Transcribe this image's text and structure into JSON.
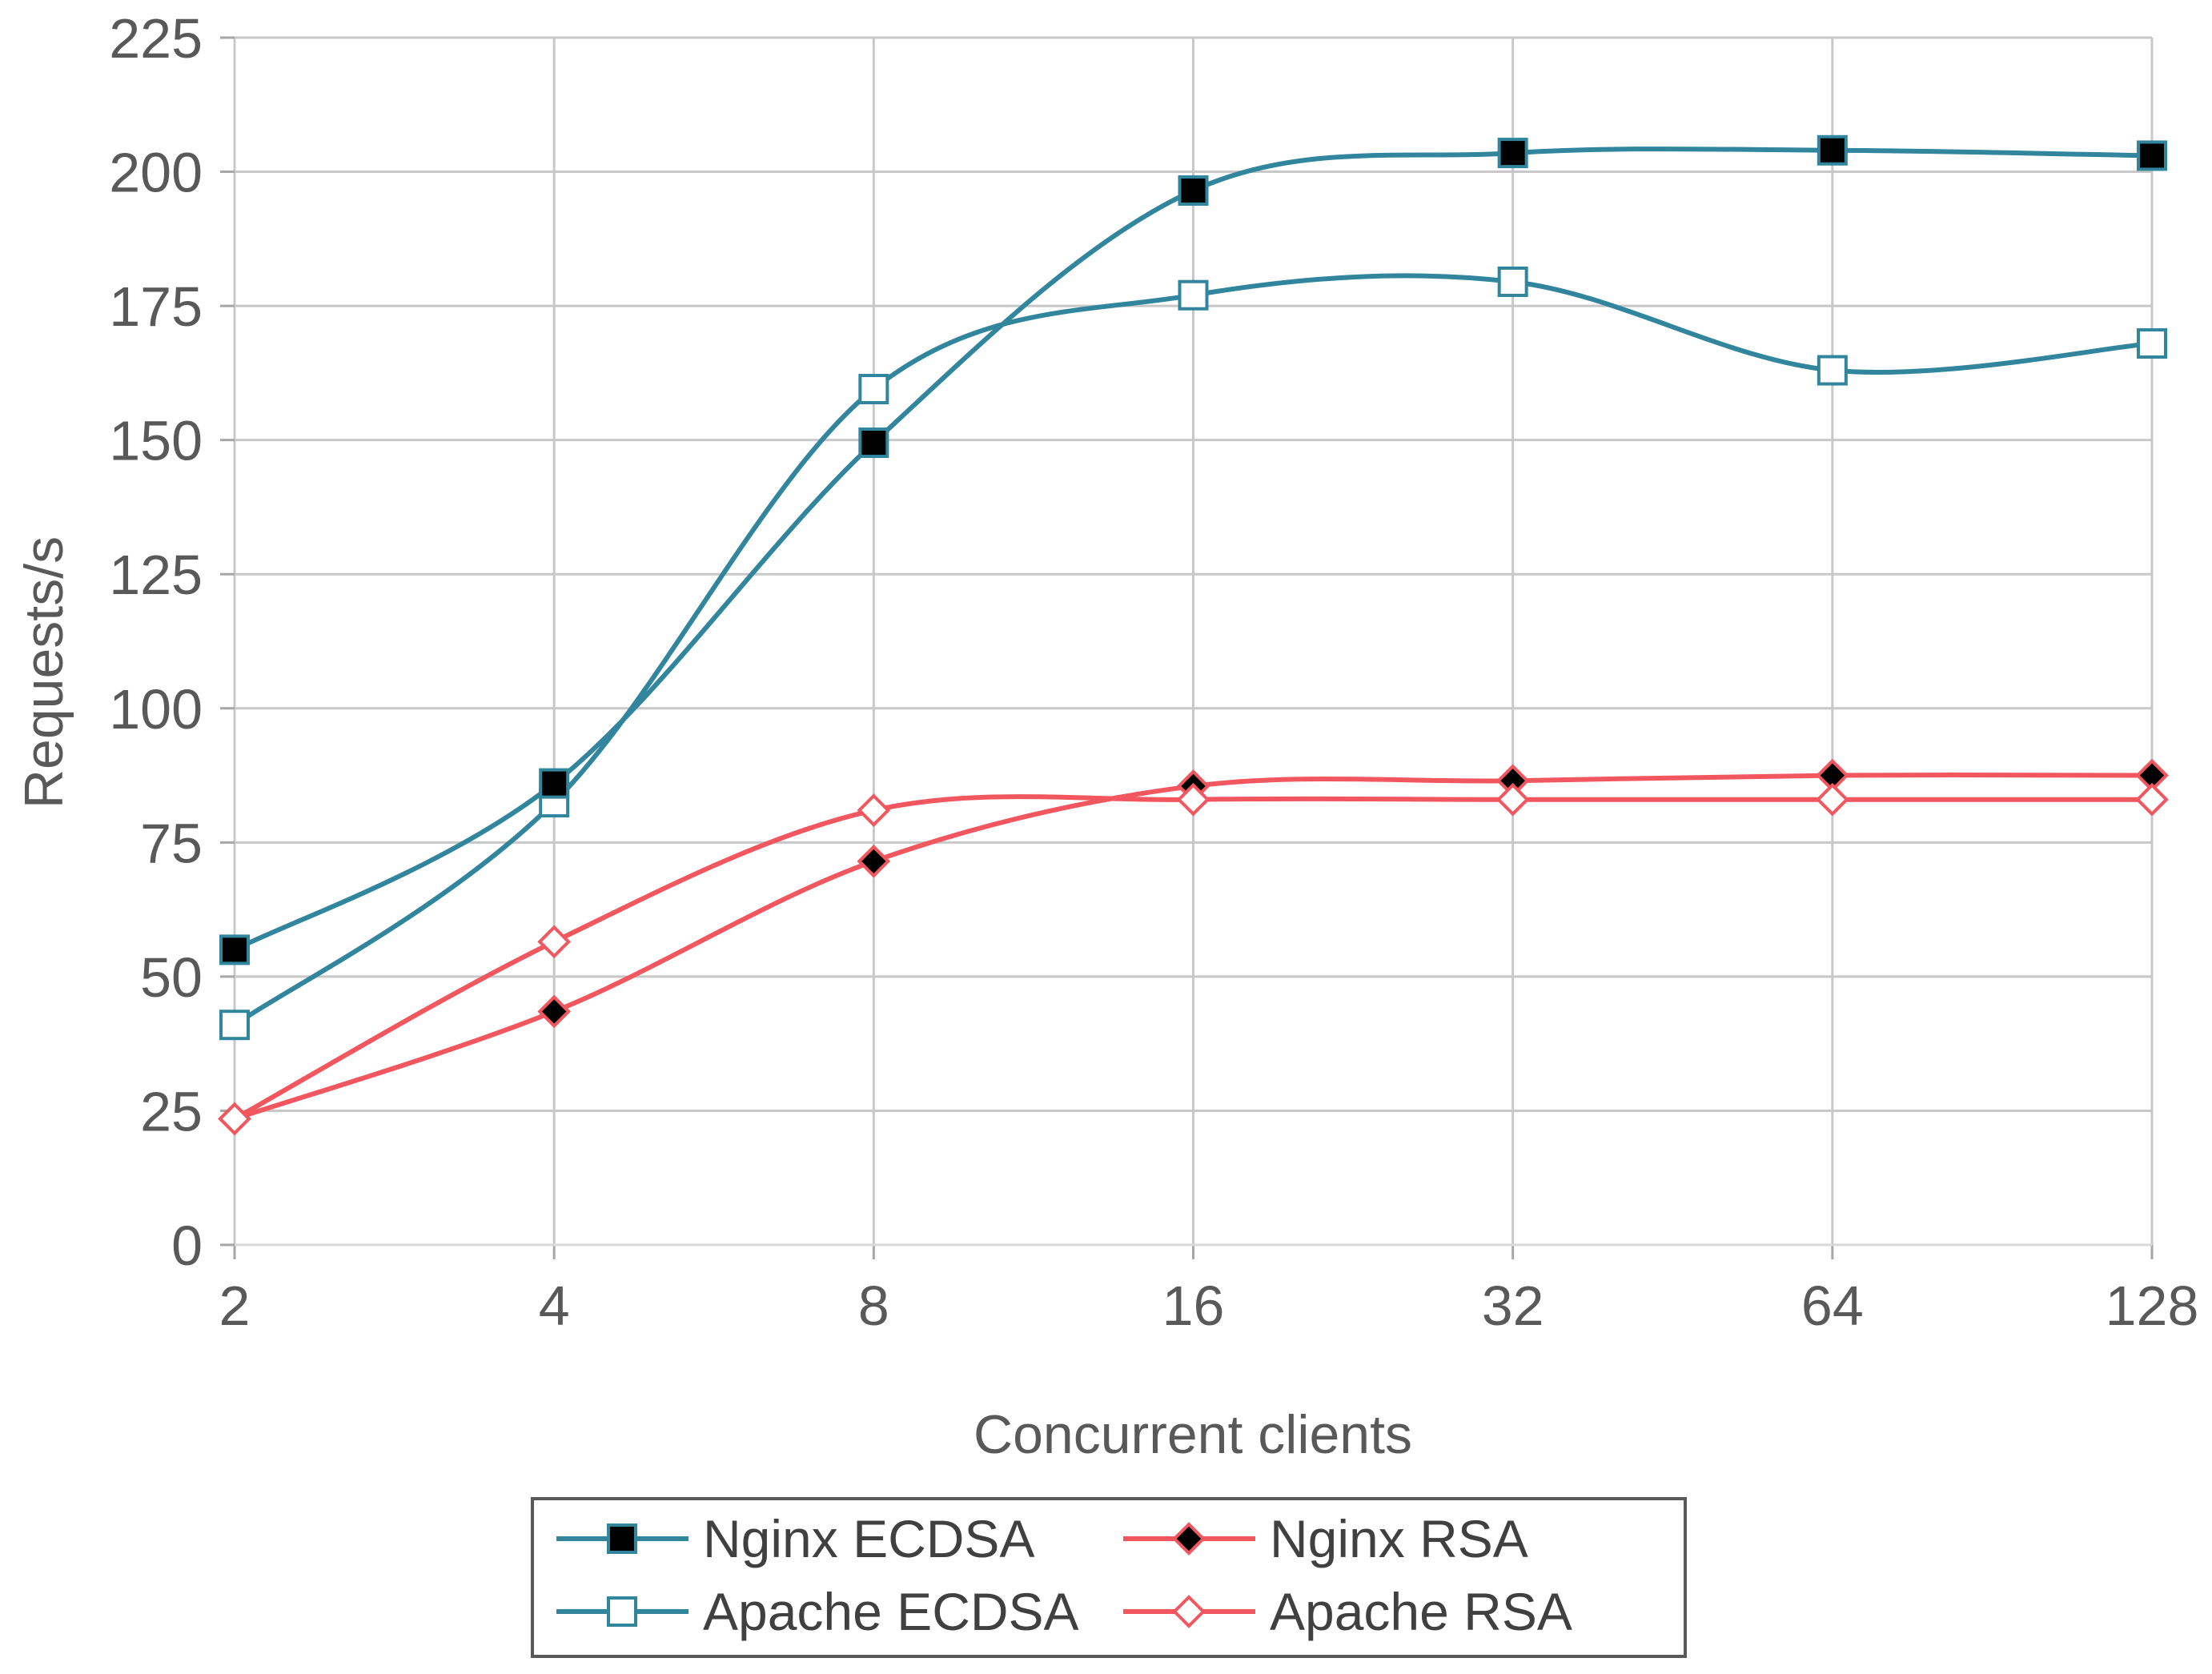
{
  "chart_data": {
    "type": "line",
    "title": "",
    "xlabel": "Concurrent clients",
    "ylabel": "Requests/s",
    "categories": [
      "2",
      "4",
      "8",
      "16",
      "32",
      "64",
      "128"
    ],
    "ylim": [
      0,
      225
    ],
    "yticks": [
      0,
      25,
      50,
      75,
      100,
      125,
      150,
      175,
      200,
      225
    ],
    "grid": true,
    "legend_position": "bottom-center",
    "series": [
      {
        "name": "Nginx ECDSA",
        "color": "#31859c",
        "marker": "filled-square",
        "values": [
          55,
          86,
          149.5,
          196.5,
          203.5,
          204,
          203
        ]
      },
      {
        "name": "Apache ECDSA",
        "color": "#31859c",
        "marker": "open-square",
        "values": [
          41,
          82.5,
          159.5,
          177,
          179.5,
          163,
          168
        ]
      },
      {
        "name": "Nginx RSA",
        "color": "#f2575f",
        "marker": "filled-diamond",
        "values": [
          23.5,
          43.5,
          71.5,
          85.5,
          86.5,
          87.5,
          87.5
        ]
      },
      {
        "name": "Apache RSA",
        "color": "#f2575f",
        "marker": "open-diamond",
        "values": [
          23.5,
          56.5,
          81,
          83,
          83,
          83,
          83
        ]
      }
    ]
  }
}
